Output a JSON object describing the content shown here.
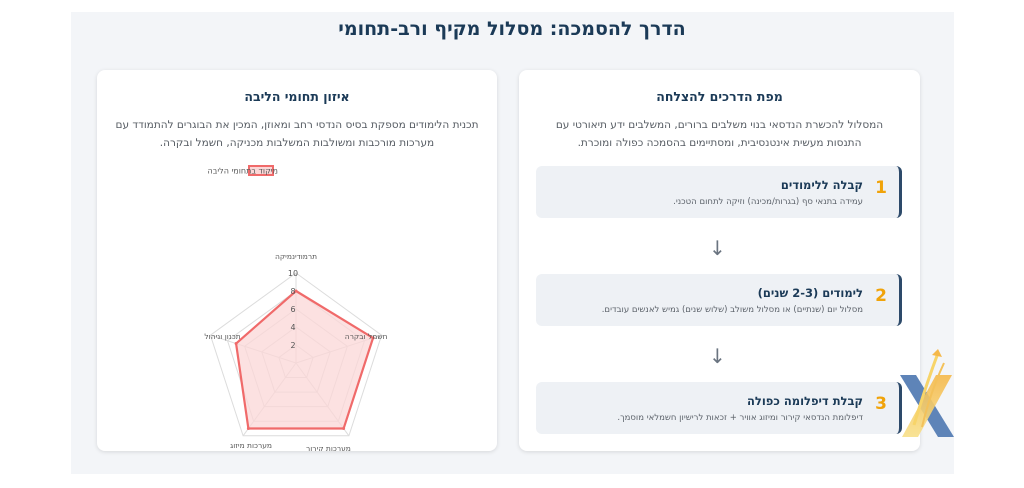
{
  "page": {
    "title": "הדרך להסמכה: מסלול מקיף ורב-תחומי"
  },
  "roadmap": {
    "title": "מפת הדרכים להצלחה",
    "description": "המסלול להכשרת הנדסאי בנוי משלבים ברורים, המשלבים ידע תיאורטי עם התנסות מעשית אינטנסיבית, ומסתיימים בהסמכה כפולה ומוכרת.",
    "steps": [
      {
        "number": "1",
        "title": "קבלה ללימודים",
        "desc": "עמידה בתנאי סף (בגרות/מכינה) וזיקה לתחום הטכני."
      },
      {
        "number": "2",
        "title": "לימודים (2-3 שנים)",
        "desc": "מסלול יום (שנתיים) או מסלול משולב (שלוש שנים) גמיש לאנשים עובדים."
      },
      {
        "number": "3",
        "title": "קבלת דיפלומה כפולה",
        "desc": "דיפלומת הנדסאי קירור ומיזוג אוויר + זכאות לרישיון חשמלאי מוסמך."
      }
    ],
    "arrow": "↓"
  },
  "balance": {
    "title": "איזון תחומי הליבה",
    "description": "תכנית הלימודים מספקת בסיס הנדסי רחב ומאוזן, המכין את הבוגרים להתמודד עם מערכות מורכבות ומשולבות המשלבות מכניקה, חשמל ובקרה."
  },
  "chart_data": {
    "type": "radar",
    "categories": [
      "תרמודינמיקה",
      "חשמל ובקרה",
      "מערכות קירור",
      "מערכות מיזוג אוויר",
      "תכנון וניהול"
    ],
    "series": [
      {
        "name": "מיקוד בתחומי הליבה",
        "values": [
          8,
          9,
          9,
          9,
          7
        ]
      }
    ],
    "rlim": [
      0,
      10
    ],
    "ticks": [
      "2",
      "4",
      "6",
      "8",
      "10"
    ],
    "legend_position": "top",
    "colors": {
      "line": "#f06a6a",
      "fill": "#fbd7d7"
    }
  },
  "colors": {
    "accent": "#f0a30a",
    "title": "#1b3a57"
  },
  "logo": {
    "icon": "x-arrow-logo-icon"
  }
}
